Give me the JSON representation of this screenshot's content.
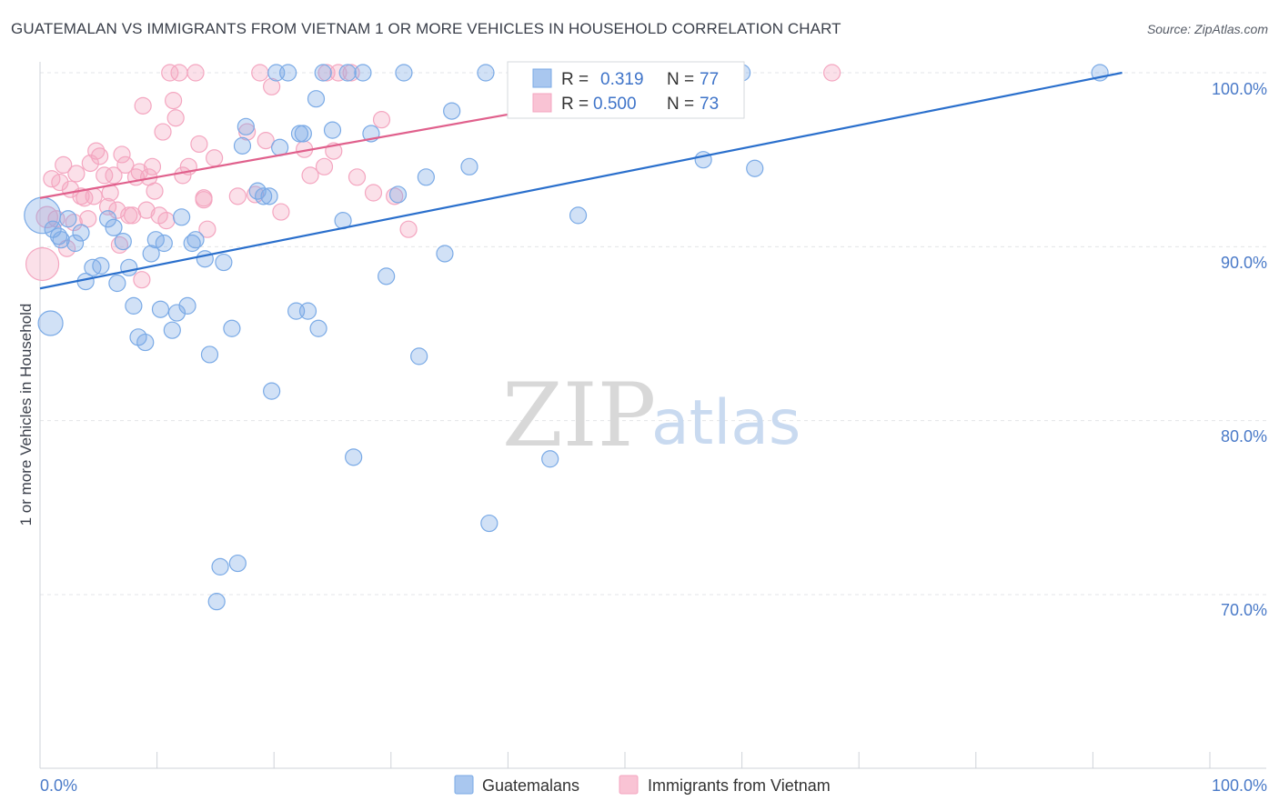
{
  "chart_data": {
    "type": "scatter",
    "title": "GUATEMALAN VS IMMIGRANTS FROM VIETNAM 1 OR MORE VEHICLES IN HOUSEHOLD CORRELATION CHART",
    "source": "Source: ZipAtlas.com",
    "ylabel": "1 or more Vehicles in Household",
    "xlabel": "",
    "xlim": [
      0,
      100
    ],
    "ylim": [
      60,
      101.5
    ],
    "x_tick_labels": [
      "0.0%",
      "100.0%"
    ],
    "y_ticks": [
      70,
      80,
      90,
      100
    ],
    "y_tick_labels": [
      "70.0%",
      "80.0%",
      "90.0%",
      "100.0%"
    ],
    "grid": true,
    "watermark": {
      "zip": "ZIP",
      "atlas": "atlas"
    },
    "legend": {
      "r_label": "R =",
      "n_label": "N =",
      "entries": [
        {
          "r": "0.319",
          "n": "77"
        },
        {
          "r": "0.500",
          "n": "73"
        }
      ]
    },
    "series": [
      {
        "name": "Guatemalans",
        "color": "#7aaae6",
        "line_color": "#2a6fcc",
        "trend": {
          "x": [
            0,
            92.5
          ],
          "y": [
            87.6,
            100.0
          ]
        },
        "points": [
          {
            "x": 0.2,
            "y": 91.8,
            "s": 2.2
          },
          {
            "x": 0.9,
            "y": 85.6,
            "s": 1.5
          },
          {
            "x": 1.1,
            "y": 91.0,
            "s": 1
          },
          {
            "x": 1.6,
            "y": 90.6,
            "s": 1
          },
          {
            "x": 1.8,
            "y": 90.4,
            "s": 1
          },
          {
            "x": 2.4,
            "y": 91.6,
            "s": 1
          },
          {
            "x": 3.0,
            "y": 90.2,
            "s": 1
          },
          {
            "x": 3.5,
            "y": 90.8,
            "s": 1
          },
          {
            "x": 3.9,
            "y": 88.0,
            "s": 1
          },
          {
            "x": 4.5,
            "y": 88.8,
            "s": 1
          },
          {
            "x": 5.2,
            "y": 88.9,
            "s": 1
          },
          {
            "x": 5.8,
            "y": 91.6,
            "s": 1
          },
          {
            "x": 6.3,
            "y": 91.1,
            "s": 1
          },
          {
            "x": 6.6,
            "y": 87.9,
            "s": 1
          },
          {
            "x": 7.1,
            "y": 90.3,
            "s": 1
          },
          {
            "x": 7.6,
            "y": 88.8,
            "s": 1
          },
          {
            "x": 8.0,
            "y": 86.6,
            "s": 1
          },
          {
            "x": 8.4,
            "y": 84.8,
            "s": 1
          },
          {
            "x": 9.0,
            "y": 84.5,
            "s": 1
          },
          {
            "x": 9.5,
            "y": 89.6,
            "s": 1
          },
          {
            "x": 9.9,
            "y": 90.4,
            "s": 1
          },
          {
            "x": 10.3,
            "y": 86.4,
            "s": 1
          },
          {
            "x": 10.6,
            "y": 90.2,
            "s": 1
          },
          {
            "x": 11.3,
            "y": 85.2,
            "s": 1
          },
          {
            "x": 11.7,
            "y": 86.2,
            "s": 1
          },
          {
            "x": 12.1,
            "y": 91.7,
            "s": 1
          },
          {
            "x": 12.6,
            "y": 86.6,
            "s": 1
          },
          {
            "x": 13.0,
            "y": 90.2,
            "s": 1
          },
          {
            "x": 13.3,
            "y": 90.4,
            "s": 1
          },
          {
            "x": 14.1,
            "y": 89.3,
            "s": 1
          },
          {
            "x": 14.5,
            "y": 83.8,
            "s": 1
          },
          {
            "x": 15.1,
            "y": 69.6,
            "s": 1
          },
          {
            "x": 15.4,
            "y": 71.6,
            "s": 1
          },
          {
            "x": 15.7,
            "y": 89.1,
            "s": 1
          },
          {
            "x": 16.4,
            "y": 85.3,
            "s": 1
          },
          {
            "x": 16.9,
            "y": 71.8,
            "s": 1
          },
          {
            "x": 17.3,
            "y": 95.8,
            "s": 1
          },
          {
            "x": 17.6,
            "y": 96.9,
            "s": 1
          },
          {
            "x": 18.6,
            "y": 93.2,
            "s": 1
          },
          {
            "x": 19.1,
            "y": 92.9,
            "s": 1
          },
          {
            "x": 19.6,
            "y": 92.9,
            "s": 1
          },
          {
            "x": 19.8,
            "y": 81.7,
            "s": 1
          },
          {
            "x": 20.5,
            "y": 95.7,
            "s": 1
          },
          {
            "x": 21.2,
            "y": 100.0,
            "s": 1
          },
          {
            "x": 21.9,
            "y": 86.3,
            "s": 1
          },
          {
            "x": 22.2,
            "y": 96.5,
            "s": 1
          },
          {
            "x": 22.5,
            "y": 96.5,
            "s": 1
          },
          {
            "x": 22.9,
            "y": 86.3,
            "s": 1
          },
          {
            "x": 23.6,
            "y": 98.5,
            "s": 1
          },
          {
            "x": 23.8,
            "y": 85.3,
            "s": 1
          },
          {
            "x": 24.2,
            "y": 100.0,
            "s": 1
          },
          {
            "x": 25.0,
            "y": 96.7,
            "s": 1
          },
          {
            "x": 25.9,
            "y": 91.5,
            "s": 1
          },
          {
            "x": 26.3,
            "y": 100.0,
            "s": 1
          },
          {
            "x": 26.8,
            "y": 77.9,
            "s": 1
          },
          {
            "x": 27.6,
            "y": 100.0,
            "s": 1
          },
          {
            "x": 28.3,
            "y": 96.5,
            "s": 1
          },
          {
            "x": 29.6,
            "y": 88.3,
            "s": 1
          },
          {
            "x": 30.6,
            "y": 93.0,
            "s": 1
          },
          {
            "x": 31.1,
            "y": 100.0,
            "s": 1
          },
          {
            "x": 32.4,
            "y": 83.7,
            "s": 1
          },
          {
            "x": 33.0,
            "y": 94.0,
            "s": 1
          },
          {
            "x": 34.6,
            "y": 89.6,
            "s": 1
          },
          {
            "x": 35.2,
            "y": 97.8,
            "s": 1
          },
          {
            "x": 36.7,
            "y": 94.6,
            "s": 1
          },
          {
            "x": 38.4,
            "y": 74.1,
            "s": 1
          },
          {
            "x": 38.1,
            "y": 100.0,
            "s": 1
          },
          {
            "x": 43.6,
            "y": 77.8,
            "s": 1
          },
          {
            "x": 43.6,
            "y": 100.0,
            "s": 1
          },
          {
            "x": 46.0,
            "y": 91.8,
            "s": 1
          },
          {
            "x": 52.5,
            "y": 100.0,
            "s": 1
          },
          {
            "x": 56.7,
            "y": 95.0,
            "s": 1
          },
          {
            "x": 60.0,
            "y": 100.0,
            "s": 1
          },
          {
            "x": 61.1,
            "y": 94.5,
            "s": 1
          },
          {
            "x": 90.6,
            "y": 100.0,
            "s": 1
          },
          {
            "x": 43.3,
            "y": 100.0,
            "s": 1
          },
          {
            "x": 20.2,
            "y": 100.0,
            "s": 1
          }
        ]
      },
      {
        "name": "Immigrants from Vietnam",
        "color": "#f4a6c0",
        "line_color": "#e0608c",
        "trend": {
          "x": [
            0,
            60
          ],
          "y": [
            92.8,
            100.0
          ]
        },
        "points": [
          {
            "x": 0.2,
            "y": 89.0,
            "s": 2.0
          },
          {
            "x": 0.6,
            "y": 91.7,
            "s": 1.3
          },
          {
            "x": 1.0,
            "y": 93.9,
            "s": 1
          },
          {
            "x": 1.4,
            "y": 91.6,
            "s": 1
          },
          {
            "x": 1.7,
            "y": 93.7,
            "s": 1
          },
          {
            "x": 2.0,
            "y": 94.7,
            "s": 1
          },
          {
            "x": 2.3,
            "y": 89.9,
            "s": 1
          },
          {
            "x": 2.6,
            "y": 93.3,
            "s": 1
          },
          {
            "x": 2.9,
            "y": 91.4,
            "s": 1
          },
          {
            "x": 3.1,
            "y": 94.2,
            "s": 1
          },
          {
            "x": 3.5,
            "y": 92.9,
            "s": 1
          },
          {
            "x": 3.8,
            "y": 92.8,
            "s": 1
          },
          {
            "x": 4.1,
            "y": 91.6,
            "s": 1
          },
          {
            "x": 4.3,
            "y": 94.8,
            "s": 1
          },
          {
            "x": 4.6,
            "y": 92.9,
            "s": 1
          },
          {
            "x": 4.8,
            "y": 95.5,
            "s": 1
          },
          {
            "x": 5.1,
            "y": 95.2,
            "s": 1
          },
          {
            "x": 5.5,
            "y": 94.1,
            "s": 1
          },
          {
            "x": 5.8,
            "y": 92.3,
            "s": 1
          },
          {
            "x": 6.0,
            "y": 93.1,
            "s": 1
          },
          {
            "x": 6.3,
            "y": 94.1,
            "s": 1
          },
          {
            "x": 6.6,
            "y": 92.1,
            "s": 1
          },
          {
            "x": 6.8,
            "y": 90.1,
            "s": 1
          },
          {
            "x": 7.0,
            "y": 95.3,
            "s": 1
          },
          {
            "x": 7.3,
            "y": 94.7,
            "s": 1
          },
          {
            "x": 7.6,
            "y": 91.8,
            "s": 1
          },
          {
            "x": 7.9,
            "y": 91.8,
            "s": 1
          },
          {
            "x": 8.2,
            "y": 94.0,
            "s": 1
          },
          {
            "x": 8.5,
            "y": 94.3,
            "s": 1
          },
          {
            "x": 8.7,
            "y": 88.1,
            "s": 1
          },
          {
            "x": 8.8,
            "y": 98.1,
            "s": 1
          },
          {
            "x": 9.1,
            "y": 92.1,
            "s": 1
          },
          {
            "x": 9.3,
            "y": 94.0,
            "s": 1
          },
          {
            "x": 9.6,
            "y": 94.6,
            "s": 1
          },
          {
            "x": 9.8,
            "y": 93.2,
            "s": 1
          },
          {
            "x": 10.2,
            "y": 91.8,
            "s": 1
          },
          {
            "x": 10.5,
            "y": 96.6,
            "s": 1
          },
          {
            "x": 10.8,
            "y": 91.5,
            "s": 1
          },
          {
            "x": 11.1,
            "y": 100.0,
            "s": 1
          },
          {
            "x": 11.4,
            "y": 98.4,
            "s": 1
          },
          {
            "x": 11.6,
            "y": 97.4,
            "s": 1
          },
          {
            "x": 11.9,
            "y": 100.0,
            "s": 1
          },
          {
            "x": 12.2,
            "y": 94.1,
            "s": 1
          },
          {
            "x": 12.7,
            "y": 94.6,
            "s": 1
          },
          {
            "x": 13.3,
            "y": 100.0,
            "s": 1
          },
          {
            "x": 13.6,
            "y": 95.9,
            "s": 1
          },
          {
            "x": 14.0,
            "y": 92.7,
            "s": 1
          },
          {
            "x": 14.3,
            "y": 91.0,
            "s": 1
          },
          {
            "x": 14.9,
            "y": 95.1,
            "s": 1
          },
          {
            "x": 16.9,
            "y": 92.9,
            "s": 1
          },
          {
            "x": 17.7,
            "y": 96.6,
            "s": 1
          },
          {
            "x": 18.4,
            "y": 93.0,
            "s": 1
          },
          {
            "x": 18.8,
            "y": 100.0,
            "s": 1
          },
          {
            "x": 19.3,
            "y": 96.1,
            "s": 1
          },
          {
            "x": 19.8,
            "y": 99.2,
            "s": 1
          },
          {
            "x": 20.6,
            "y": 92.0,
            "s": 1
          },
          {
            "x": 22.6,
            "y": 95.6,
            "s": 1
          },
          {
            "x": 23.1,
            "y": 94.1,
            "s": 1
          },
          {
            "x": 24.3,
            "y": 94.6,
            "s": 1
          },
          {
            "x": 25.1,
            "y": 95.5,
            "s": 1
          },
          {
            "x": 25.5,
            "y": 100.0,
            "s": 1
          },
          {
            "x": 26.6,
            "y": 100.0,
            "s": 1
          },
          {
            "x": 27.1,
            "y": 94.0,
            "s": 1
          },
          {
            "x": 28.5,
            "y": 93.1,
            "s": 1
          },
          {
            "x": 29.2,
            "y": 97.3,
            "s": 1
          },
          {
            "x": 30.3,
            "y": 92.9,
            "s": 1
          },
          {
            "x": 31.5,
            "y": 91.0,
            "s": 1
          },
          {
            "x": 43.3,
            "y": 100.0,
            "s": 1
          },
          {
            "x": 52.2,
            "y": 100.0,
            "s": 1
          },
          {
            "x": 56.2,
            "y": 100.0,
            "s": 1
          },
          {
            "x": 67.7,
            "y": 100.0,
            "s": 1
          },
          {
            "x": 14.0,
            "y": 92.8,
            "s": 1
          },
          {
            "x": 24.5,
            "y": 100.0,
            "s": 1
          }
        ]
      }
    ]
  }
}
